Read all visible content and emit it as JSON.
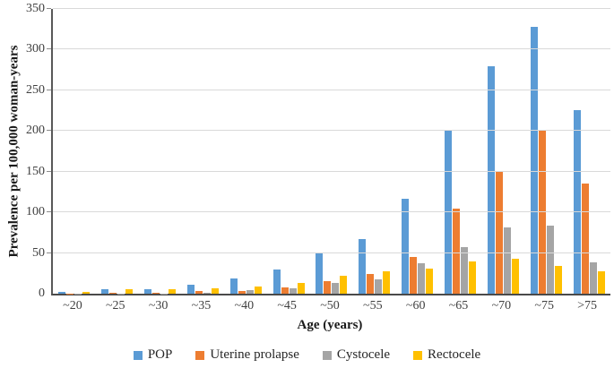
{
  "chart_data": {
    "type": "bar",
    "title": "",
    "xlabel": "Age (years)",
    "ylabel": "Prevalence per 100,000 woman-years",
    "ylim": [
      0,
      350
    ],
    "ytick_step": 50,
    "yticks": [
      0,
      50,
      100,
      150,
      200,
      250,
      300,
      350
    ],
    "grid": true,
    "legend_position": "bottom",
    "categories": [
      "~20",
      "~25",
      "~30",
      "~35",
      "~40",
      "~45",
      "~50",
      "~55",
      "~60",
      "~65",
      "~70",
      "~75",
      ">75"
    ],
    "series": [
      {
        "name": "POP",
        "color": "#5B9BD5",
        "values": [
          2,
          5,
          5,
          11,
          19,
          30,
          51,
          67,
          117,
          200,
          280,
          328,
          226
        ]
      },
      {
        "name": "Uterine prolapse",
        "color": "#ED7D31",
        "values": [
          0.5,
          1,
          1,
          3,
          3,
          8,
          15,
          24,
          45,
          105,
          150,
          200,
          135
        ]
      },
      {
        "name": "Cystocele",
        "color": "#A5A5A5",
        "values": [
          0.3,
          0.5,
          0.5,
          1,
          4,
          7,
          13,
          18,
          37,
          57,
          82,
          84,
          38
        ]
      },
      {
        "name": "Rectocele",
        "color": "#FFC000",
        "values": [
          2,
          5,
          5,
          7,
          9,
          13,
          22,
          27,
          31,
          40,
          43,
          34,
          27
        ]
      }
    ],
    "colors": {
      "gridline": "#D9D9D9",
      "axis_line": "#595959",
      "tick_text": "#404040"
    }
  }
}
